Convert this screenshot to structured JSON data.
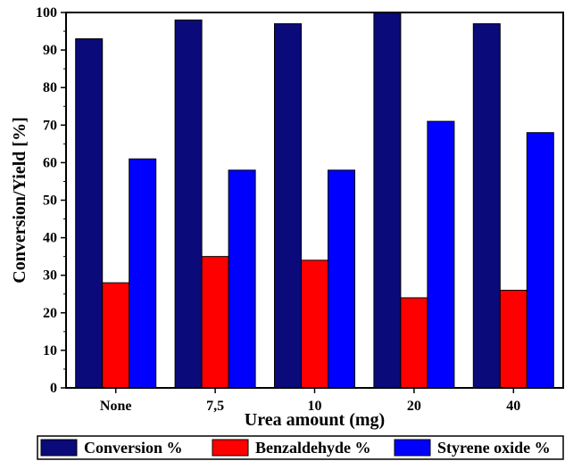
{
  "chart_data": {
    "type": "bar",
    "title": "",
    "xlabel": "Urea amount (mg)",
    "ylabel": "Conversion/Yield [%]",
    "categories": [
      "None",
      "7,5",
      "10",
      "20",
      "40"
    ],
    "ylim": [
      0,
      100
    ],
    "yticks": [
      0,
      10,
      20,
      30,
      40,
      50,
      60,
      70,
      80,
      90,
      100
    ],
    "grid": false,
    "legend_position": "bottom",
    "series": [
      {
        "name": "Conversion %",
        "color": "#0a0a7a",
        "values": [
          93,
          98,
          97,
          100,
          97
        ]
      },
      {
        "name": "Benzaldehyde %",
        "color": "#ff0000",
        "values": [
          28,
          35,
          34,
          24,
          26
        ]
      },
      {
        "name": "Styrene oxide %",
        "color": "#0000ff",
        "values": [
          61,
          58,
          58,
          71,
          68
        ]
      }
    ]
  }
}
